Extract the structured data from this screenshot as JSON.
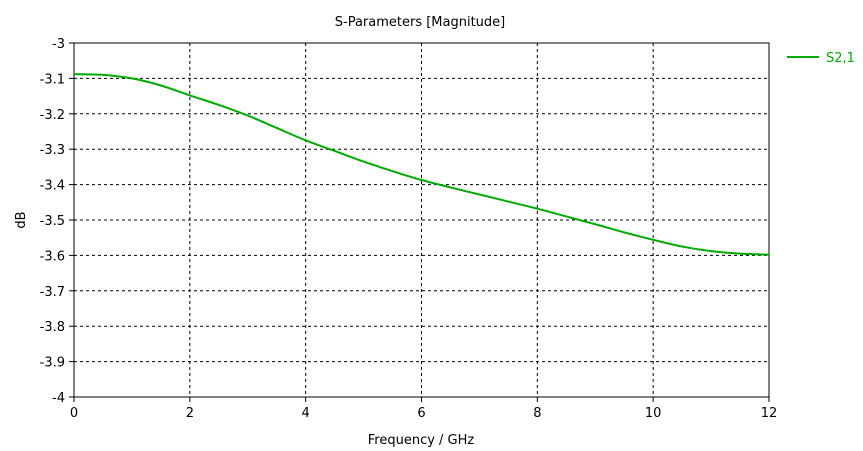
{
  "chart_data": {
    "type": "line",
    "title": "S-Parameters [Magnitude]",
    "xlabel": "Frequency / GHz",
    "ylabel": "dB",
    "xlim": [
      0,
      12
    ],
    "ylim": [
      -4,
      -3
    ],
    "x_ticks": [
      0,
      2,
      4,
      6,
      8,
      10,
      12
    ],
    "y_ticks": [
      -3,
      -3.1,
      -3.2,
      -3.3,
      -3.4,
      -3.5,
      -3.6,
      -3.7,
      -3.8,
      -3.9,
      -4
    ],
    "grid": true,
    "legend_position": "right",
    "series": [
      {
        "name": "S2,1",
        "color": "#00aa00",
        "x": [
          0,
          0.5,
          1,
          1.5,
          2,
          2.5,
          3,
          3.5,
          4,
          4.5,
          5,
          5.5,
          6,
          6.5,
          7,
          7.5,
          8,
          8.5,
          9,
          9.5,
          10,
          10.5,
          11,
          11.5,
          12
        ],
        "values": [
          -3.088,
          -3.09,
          -3.1,
          -3.12,
          -3.148,
          -3.175,
          -3.205,
          -3.24,
          -3.275,
          -3.305,
          -3.335,
          -3.362,
          -3.387,
          -3.408,
          -3.428,
          -3.448,
          -3.468,
          -3.49,
          -3.512,
          -3.535,
          -3.556,
          -3.575,
          -3.588,
          -3.595,
          -3.598
        ]
      }
    ]
  }
}
